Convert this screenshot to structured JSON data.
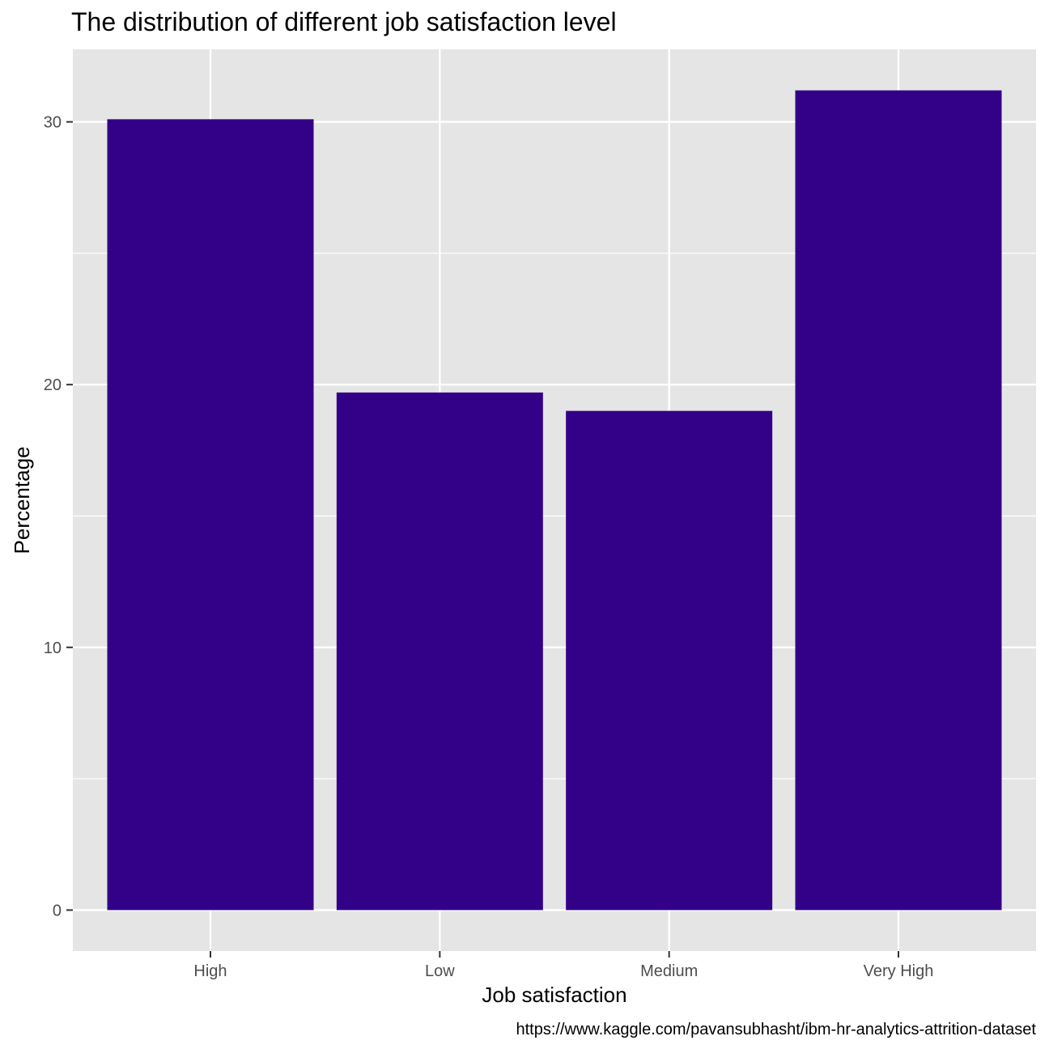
{
  "chart_data": {
    "type": "bar",
    "title": "The distribution of different job satisfaction level",
    "xlabel": "Job satisfaction",
    "ylabel": "Percentage",
    "caption": "https://www.kaggle.com/pavansubhasht/ibm-hr-analytics-attrition-dataset",
    "categories": [
      "High",
      "Low",
      "Medium",
      "Very High"
    ],
    "values": [
      30.1,
      19.7,
      19.0,
      31.2
    ],
    "yticks": [
      0,
      10,
      20,
      30
    ],
    "ylim": [
      -1.56,
      32.76
    ],
    "grid": true,
    "bar_color": "#330088",
    "panel_color": "#e5e5e5",
    "grid_color": "#ffffff"
  }
}
